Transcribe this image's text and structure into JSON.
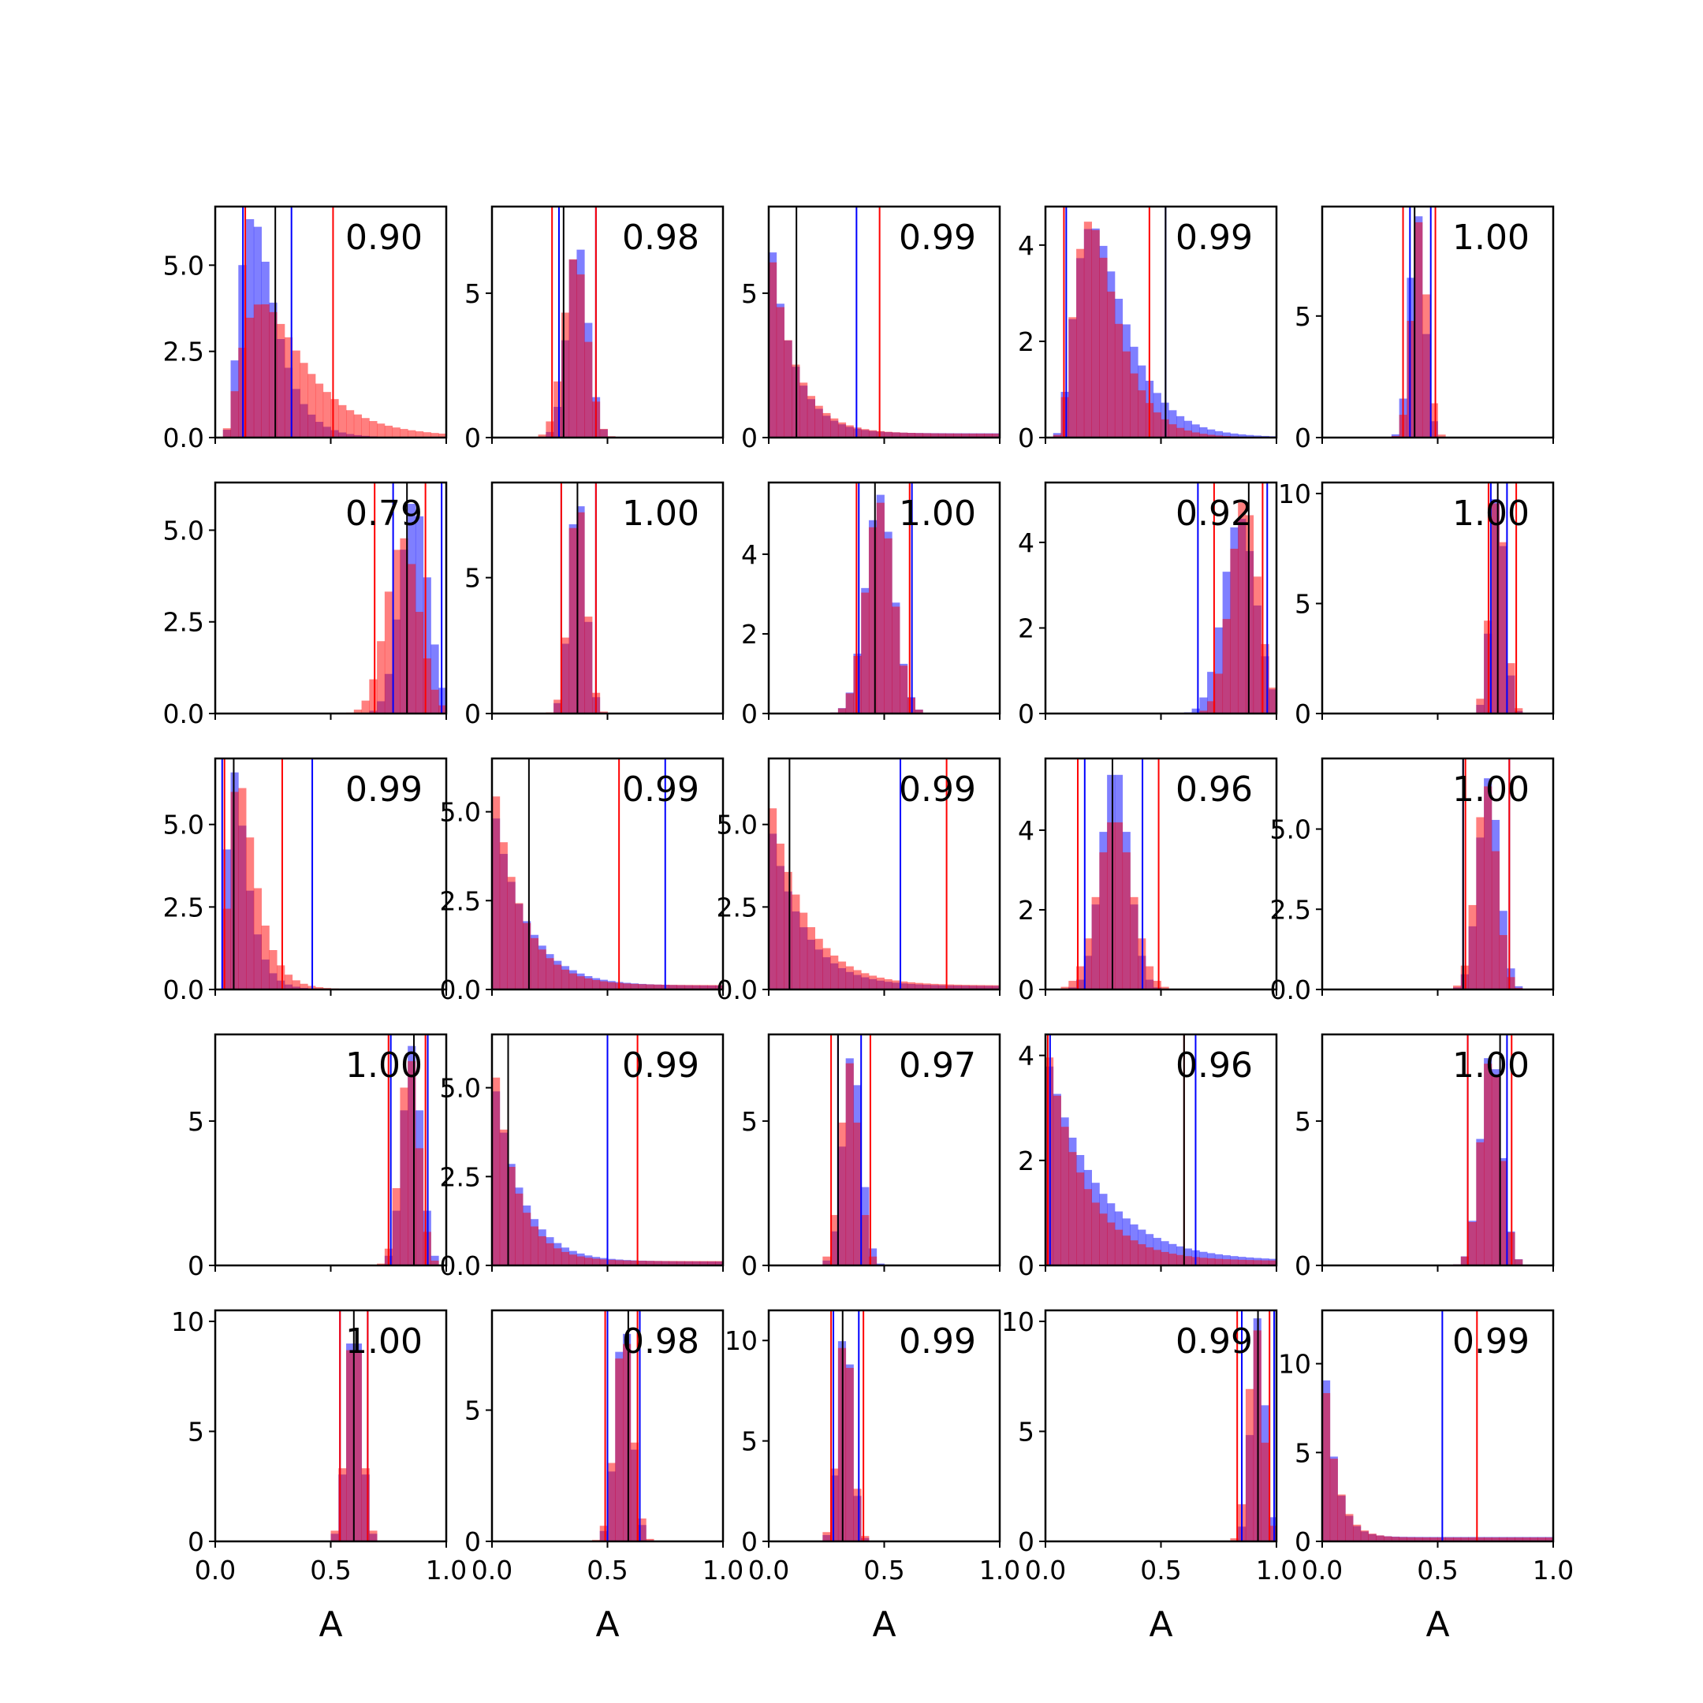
{
  "chart_data": {
    "type": "histogram-grid",
    "rows": 5,
    "cols": 5,
    "xlabel": "A",
    "xlim": [
      0,
      1
    ],
    "xticks": [
      "0.0",
      "0.5",
      "1.0"
    ],
    "colors": {
      "blue": "#0000ff",
      "red": "#ff0000",
      "median": "#000000"
    },
    "bins": 30,
    "panels": [
      {
        "corr": "0.90",
        "ylim": [
          0,
          6.7
        ],
        "yticks": [
          0,
          2.5,
          5.0
        ],
        "yfmt": 1,
        "lines": {
          "blue": [
            0.12,
            0.33
          ],
          "red": [
            0.13,
            0.51
          ],
          "median": 0.26
        },
        "blue": {
          "shape": "lognorm",
          "mode": 0.16,
          "width": 0.45,
          "peak": 6.4
        },
        "red": {
          "shape": "lognorm",
          "mode": 0.2,
          "width": 0.6,
          "peak": 3.9
        }
      },
      {
        "corr": "0.98",
        "ylim": [
          0,
          8
        ],
        "yticks": [
          0,
          5
        ],
        "yfmt": 0,
        "lines": {
          "blue": [
            0.29,
            0.45
          ],
          "red": [
            0.26,
            0.45
          ],
          "median": 0.31
        },
        "blue": {
          "shape": "normal",
          "mode": 0.37,
          "width": 0.045,
          "peak": 6.8
        },
        "red": {
          "shape": "normal",
          "mode": 0.36,
          "width": 0.05,
          "peak": 6.3
        }
      },
      {
        "corr": "0.99",
        "ylim": [
          0,
          8
        ],
        "yticks": [
          0,
          5
        ],
        "yfmt": 0,
        "lines": {
          "blue": [
            0.0,
            0.38
          ],
          "red": [
            0.0,
            0.48
          ],
          "median": 0.12
        },
        "blue": {
          "shape": "exp",
          "mode": 0.0,
          "width": 0.1,
          "peak": 7.4
        },
        "red": {
          "shape": "exp",
          "mode": 0.0,
          "width": 0.11,
          "peak": 6.9
        }
      },
      {
        "corr": "0.99",
        "ylim": [
          0,
          4.8
        ],
        "yticks": [
          0,
          2,
          4
        ],
        "yfmt": 0,
        "lines": {
          "blue": [
            0.09,
            0.52
          ],
          "red": [
            0.08,
            0.45
          ],
          "median": 0.52
        },
        "blue": {
          "shape": "lognorm",
          "mode": 0.2,
          "width": 0.5,
          "peak": 4.4
        },
        "red": {
          "shape": "lognorm",
          "mode": 0.19,
          "width": 0.45,
          "peak": 4.5
        }
      },
      {
        "corr": "1.00",
        "ylim": [
          0,
          9.5
        ],
        "yticks": [
          0,
          5
        ],
        "yfmt": 0,
        "lines": {
          "blue": [
            0.38,
            0.47
          ],
          "red": [
            0.35,
            0.49
          ],
          "median": 0.4
        },
        "blue": {
          "shape": "normal",
          "mode": 0.41,
          "width": 0.032,
          "peak": 9.3
        },
        "red": {
          "shape": "normal",
          "mode": 0.42,
          "width": 0.033,
          "peak": 8.9
        }
      },
      {
        "corr": "0.79",
        "ylim": [
          0,
          6.3
        ],
        "yticks": [
          0,
          2.5,
          5.0
        ],
        "yfmt": 1,
        "lines": {
          "blue": [
            0.77,
            0.98
          ],
          "red": [
            0.69,
            0.91
          ],
          "median": 0.83
        },
        "blue": {
          "shape": "normal",
          "mode": 0.86,
          "width": 0.06,
          "peak": 5.8
        },
        "red": {
          "shape": "normal",
          "mode": 0.81,
          "width": 0.07,
          "peak": 4.8
        }
      },
      {
        "corr": "1.00",
        "ylim": [
          0,
          8.5
        ],
        "yticks": [
          0,
          5
        ],
        "yfmt": 0,
        "lines": {
          "blue": [
            0.3,
            0.45
          ],
          "red": [
            0.3,
            0.45
          ],
          "median": 0.37
        },
        "blue": {
          "shape": "normal",
          "mode": 0.37,
          "width": 0.035,
          "peak": 8.2
        },
        "red": {
          "shape": "normal",
          "mode": 0.37,
          "width": 0.037,
          "peak": 7.9
        }
      },
      {
        "corr": "1.00",
        "ylim": [
          0,
          5.8
        ],
        "yticks": [
          0,
          2,
          4
        ],
        "yfmt": 0,
        "lines": {
          "blue": [
            0.39,
            0.62
          ],
          "red": [
            0.38,
            0.61
          ],
          "median": 0.46
        },
        "blue": {
          "shape": "normal",
          "mode": 0.48,
          "width": 0.06,
          "peak": 5.5
        },
        "red": {
          "shape": "normal",
          "mode": 0.48,
          "width": 0.06,
          "peak": 5.3
        }
      },
      {
        "corr": "0.92",
        "ylim": [
          0,
          5.4
        ],
        "yticks": [
          0,
          2,
          4
        ],
        "yfmt": 0,
        "lines": {
          "blue": [
            0.66,
            0.96
          ],
          "red": [
            0.73,
            0.94
          ],
          "median": 0.88
        },
        "blue": {
          "shape": "normal",
          "mode": 0.84,
          "width": 0.07,
          "peak": 4.6
        },
        "red": {
          "shape": "normal",
          "mode": 0.86,
          "width": 0.06,
          "peak": 5.0
        }
      },
      {
        "corr": "1.00",
        "ylim": [
          0,
          10.5
        ],
        "yticks": [
          0,
          5,
          10
        ],
        "yfmt": 0,
        "lines": {
          "blue": [
            0.73,
            0.8
          ],
          "red": [
            0.72,
            0.84
          ],
          "median": 0.76
        },
        "blue": {
          "shape": "normal",
          "mode": 0.76,
          "width": 0.03,
          "peak": 10.3
        },
        "red": {
          "shape": "normal",
          "mode": 0.76,
          "width": 0.033,
          "peak": 10.0
        }
      },
      {
        "corr": "0.99",
        "ylim": [
          0,
          7
        ],
        "yticks": [
          0,
          2.5,
          5.0
        ],
        "yfmt": 1,
        "lines": {
          "blue": [
            0.03,
            0.42
          ],
          "red": [
            0.04,
            0.29
          ],
          "median": 0.08
        },
        "blue": {
          "shape": "lognorm",
          "mode": 0.08,
          "width": 0.5,
          "peak": 6.6
        },
        "red": {
          "shape": "lognorm",
          "mode": 0.1,
          "width": 0.5,
          "peak": 6.4
        }
      },
      {
        "corr": "0.99",
        "ylim": [
          0,
          6.5
        ],
        "yticks": [
          0,
          2.5,
          5.0
        ],
        "yfmt": 1,
        "lines": {
          "blue": [
            0.0,
            0.75
          ],
          "red": [
            0.0,
            0.55
          ],
          "median": 0.16
        },
        "blue": {
          "shape": "exp",
          "mode": 0.0,
          "width": 0.14,
          "peak": 5.3
        },
        "red": {
          "shape": "exp",
          "mode": 0.0,
          "width": 0.12,
          "peak": 6.1
        }
      },
      {
        "corr": "0.99",
        "ylim": [
          0,
          7
        ],
        "yticks": [
          0,
          2.5,
          5.0
        ],
        "yfmt": 1,
        "lines": {
          "blue": [
            0.0,
            0.57
          ],
          "red": [
            0.0,
            0.77
          ],
          "median": 0.09
        },
        "blue": {
          "shape": "exp",
          "mode": 0.0,
          "width": 0.14,
          "peak": 5.2
        },
        "red": {
          "shape": "exp",
          "mode": 0.0,
          "width": 0.15,
          "peak": 6.0
        }
      },
      {
        "corr": "0.96",
        "ylim": [
          0,
          5.8
        ],
        "yticks": [
          0,
          2,
          4
        ],
        "yfmt": 0,
        "lines": {
          "blue": [
            0.17,
            0.42
          ],
          "red": [
            0.14,
            0.49
          ],
          "median": 0.29
        },
        "blue": {
          "shape": "normal",
          "mode": 0.3,
          "width": 0.06,
          "peak": 5.6
        },
        "red": {
          "shape": "normal",
          "mode": 0.3,
          "width": 0.075,
          "peak": 4.3
        }
      },
      {
        "corr": "1.00",
        "ylim": [
          0,
          7.2
        ],
        "yticks": [
          0,
          2.5,
          5.0
        ],
        "yfmt": 1,
        "lines": {
          "blue": [
            0.61,
            0.81
          ],
          "red": [
            0.62,
            0.81
          ],
          "median": 0.61
        },
        "blue": {
          "shape": "normal",
          "mode": 0.72,
          "width": 0.045,
          "peak": 6.6
        },
        "red": {
          "shape": "normal",
          "mode": 0.71,
          "width": 0.045,
          "peak": 6.4
        }
      },
      {
        "corr": "1.00",
        "ylim": [
          0,
          8
        ],
        "yticks": [
          0,
          5
        ],
        "yfmt": 0,
        "lines": {
          "blue": [
            0.76,
            0.92
          ],
          "red": [
            0.75,
            0.91
          ],
          "median": 0.86
        },
        "blue": {
          "shape": "normal",
          "mode": 0.85,
          "width": 0.04,
          "peak": 7.6
        },
        "red": {
          "shape": "normal",
          "mode": 0.84,
          "width": 0.04,
          "peak": 7.3
        }
      },
      {
        "corr": "0.99",
        "ylim": [
          0,
          6.5
        ],
        "yticks": [
          0,
          2.5,
          5.0
        ],
        "yfmt": 1,
        "lines": {
          "blue": [
            0.0,
            0.5
          ],
          "red": [
            0.0,
            0.63
          ],
          "median": 0.07
        },
        "blue": {
          "shape": "exp",
          "mode": 0.0,
          "width": 0.12,
          "peak": 5.5
        },
        "red": {
          "shape": "exp",
          "mode": 0.0,
          "width": 0.1,
          "peak": 6.1
        }
      },
      {
        "corr": "0.97",
        "ylim": [
          0,
          8
        ],
        "yticks": [
          0,
          5
        ],
        "yfmt": 0,
        "lines": {
          "blue": [
            0.3,
            0.4
          ],
          "red": [
            0.27,
            0.44
          ],
          "median": 0.3
        },
        "blue": {
          "shape": "normal",
          "mode": 0.36,
          "width": 0.04,
          "peak": 7.4
        },
        "red": {
          "shape": "normal",
          "mode": 0.35,
          "width": 0.04,
          "peak": 7.0
        }
      },
      {
        "corr": "0.96",
        "ylim": [
          0,
          4.4
        ],
        "yticks": [
          0,
          2,
          4
        ],
        "yfmt": 0,
        "lines": {
          "blue": [
            0.02,
            0.65
          ],
          "red": [
            0.01,
            0.6
          ],
          "median": 0.6
        },
        "blue": {
          "shape": "exp",
          "mode": 0.0,
          "width": 0.22,
          "peak": 4.0
        },
        "red": {
          "shape": "exp",
          "mode": 0.0,
          "width": 0.16,
          "peak": 4.3
        }
      },
      {
        "corr": "1.00",
        "ylim": [
          0,
          8
        ],
        "yticks": [
          0,
          5
        ],
        "yfmt": 0,
        "lines": {
          "blue": [
            0.63,
            0.8
          ],
          "red": [
            0.63,
            0.82
          ],
          "median": 0.77
        },
        "blue": {
          "shape": "normal",
          "mode": 0.73,
          "width": 0.045,
          "peak": 7.5
        },
        "red": {
          "shape": "normal",
          "mode": 0.73,
          "width": 0.045,
          "peak": 7.3
        }
      },
      {
        "corr": "1.00",
        "ylim": [
          0,
          10.5
        ],
        "yticks": [
          0,
          5,
          10
        ],
        "yfmt": 0,
        "lines": {
          "blue": [
            0.54,
            0.66
          ],
          "red": [
            0.54,
            0.66
          ],
          "median": 0.6
        },
        "blue": {
          "shape": "normal",
          "mode": 0.6,
          "width": 0.032,
          "peak": 10.3
        },
        "red": {
          "shape": "normal",
          "mode": 0.6,
          "width": 0.034,
          "peak": 9.8
        }
      },
      {
        "corr": "0.98",
        "ylim": [
          0,
          8.8
        ],
        "yticks": [
          0,
          5
        ],
        "yfmt": 0,
        "lines": {
          "blue": [
            0.5,
            0.64
          ],
          "red": [
            0.49,
            0.63
          ],
          "median": 0.59
        },
        "blue": {
          "shape": "normal",
          "mode": 0.57,
          "width": 0.035,
          "peak": 8.5
        },
        "red": {
          "shape": "normal",
          "mode": 0.57,
          "width": 0.038,
          "peak": 8.0
        }
      },
      {
        "corr": "0.99",
        "ylim": [
          0,
          11.5
        ],
        "yticks": [
          0,
          5,
          10
        ],
        "yfmt": 0,
        "lines": {
          "blue": [
            0.28,
            0.39
          ],
          "red": [
            0.27,
            0.41
          ],
          "median": 0.32
        },
        "blue": {
          "shape": "normal",
          "mode": 0.33,
          "width": 0.03,
          "peak": 11.0
        },
        "red": {
          "shape": "normal",
          "mode": 0.33,
          "width": 0.032,
          "peak": 10.5
        }
      },
      {
        "corr": "0.99",
        "ylim": [
          0,
          10.5
        ],
        "yticks": [
          0,
          5,
          10
        ],
        "yfmt": 0,
        "lines": {
          "blue": [
            0.85,
            0.99
          ],
          "red": [
            0.83,
            0.97
          ],
          "median": 0.92
        },
        "blue": {
          "shape": "normal",
          "mode": 0.92,
          "width": 0.03,
          "peak": 10.2
        },
        "red": {
          "shape": "normal",
          "mode": 0.91,
          "width": 0.032,
          "peak": 9.8
        }
      },
      {
        "corr": "0.99",
        "ylim": [
          0,
          13
        ],
        "yticks": [
          0,
          5,
          10
        ],
        "yfmt": 0,
        "lines": {
          "blue": [
            0.0,
            0.52
          ],
          "red": [
            0.0,
            0.67
          ],
          "median": 0.0
        },
        "blue": {
          "shape": "exp",
          "mode": 0.0,
          "width": 0.05,
          "peak": 12.3
        },
        "red": {
          "shape": "exp",
          "mode": 0.0,
          "width": 0.055,
          "peak": 11.0
        }
      }
    ]
  }
}
